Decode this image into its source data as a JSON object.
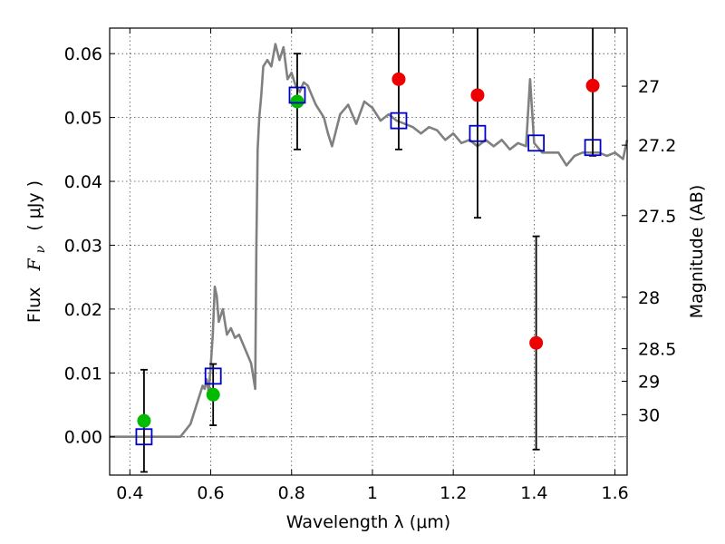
{
  "chart_data": {
    "type": "scatter",
    "xlabel": "Wavelength  λ (μm)",
    "ylabel_text": "Flux",
    "ylabel_sym": "F",
    "ylabel_sub": "ν",
    "ylabel_unit": "( μJy )",
    "y2label": "Magnitude (AB)",
    "xlim": [
      0.35,
      1.63
    ],
    "ylim": [
      -0.006,
      0.064
    ],
    "grid": true,
    "x_ticks": [
      {
        "value": 0.4,
        "label": "0.4"
      },
      {
        "value": 0.6,
        "label": "0.6"
      },
      {
        "value": 0.8,
        "label": "0.8"
      },
      {
        "value": 1.0,
        "label": "1"
      },
      {
        "value": 1.2,
        "label": "1.2"
      },
      {
        "value": 1.4,
        "label": "1.4"
      },
      {
        "value": 1.6,
        "label": "1.6"
      }
    ],
    "y_ticks": [
      {
        "value": 0.0,
        "label": "0.00"
      },
      {
        "value": 0.01,
        "label": "0.01"
      },
      {
        "value": 0.02,
        "label": "0.02"
      },
      {
        "value": 0.03,
        "label": "0.03"
      },
      {
        "value": 0.04,
        "label": "0.04"
      },
      {
        "value": 0.05,
        "label": "0.05"
      },
      {
        "value": 0.06,
        "label": "0.06"
      }
    ],
    "y2_ticks": [
      {
        "mag": 27,
        "label": "27"
      },
      {
        "mag": 27.2,
        "label": "27.2"
      },
      {
        "mag": 27.5,
        "label": "27.5"
      },
      {
        "mag": 28,
        "label": "28"
      },
      {
        "mag": 28.5,
        "label": "28.5"
      },
      {
        "mag": 29,
        "label": "29"
      },
      {
        "mag": 30,
        "label": "30"
      }
    ],
    "colors": {
      "model": "#808080",
      "model_points": "#0000cc",
      "green_points": "#00bb00",
      "red_points": "#ee0000",
      "errorbar": "#000000",
      "grid": "#000000",
      "zero_line": "#555555"
    },
    "model_spectrum": {
      "x": [
        0.35,
        0.4,
        0.45,
        0.5,
        0.525,
        0.55,
        0.565,
        0.58,
        0.585,
        0.59,
        0.595,
        0.6,
        0.605,
        0.61,
        0.615,
        0.62,
        0.63,
        0.64,
        0.65,
        0.66,
        0.67,
        0.68,
        0.69,
        0.7,
        0.705,
        0.71,
        0.713,
        0.716,
        0.72,
        0.725,
        0.73,
        0.74,
        0.75,
        0.76,
        0.77,
        0.78,
        0.79,
        0.8,
        0.81,
        0.82,
        0.83,
        0.84,
        0.85,
        0.86,
        0.87,
        0.88,
        0.89,
        0.9,
        0.92,
        0.94,
        0.96,
        0.98,
        1.0,
        1.02,
        1.04,
        1.06,
        1.08,
        1.1,
        1.12,
        1.14,
        1.16,
        1.18,
        1.2,
        1.22,
        1.24,
        1.26,
        1.28,
        1.3,
        1.32,
        1.34,
        1.36,
        1.38,
        1.39,
        1.4,
        1.42,
        1.44,
        1.46,
        1.48,
        1.5,
        1.52,
        1.54,
        1.56,
        1.58,
        1.6,
        1.62,
        1.63
      ],
      "y": [
        0,
        0,
        0,
        0,
        0,
        0.002,
        0.005,
        0.008,
        0.0075,
        0.009,
        0.007,
        0.011,
        0.016,
        0.0235,
        0.022,
        0.018,
        0.02,
        0.016,
        0.017,
        0.0155,
        0.016,
        0.0145,
        0.013,
        0.0115,
        0.0095,
        0.0075,
        0.03,
        0.045,
        0.05,
        0.0535,
        0.058,
        0.059,
        0.058,
        0.0615,
        0.059,
        0.061,
        0.056,
        0.057,
        0.055,
        0.054,
        0.0555,
        0.055,
        0.0535,
        0.052,
        0.051,
        0.05,
        0.0475,
        0.0455,
        0.0505,
        0.052,
        0.049,
        0.0525,
        0.0515,
        0.0495,
        0.0505,
        0.0495,
        0.049,
        0.0485,
        0.0475,
        0.0485,
        0.048,
        0.0465,
        0.0475,
        0.046,
        0.0465,
        0.0455,
        0.0465,
        0.0455,
        0.0465,
        0.045,
        0.046,
        0.0455,
        0.056,
        0.046,
        0.0445,
        0.0445,
        0.0445,
        0.0425,
        0.044,
        0.0445,
        0.0445,
        0.0445,
        0.044,
        0.0445,
        0.0435,
        0.0465
      ]
    },
    "model_points": [
      {
        "x": 0.435,
        "y": 0.0
      },
      {
        "x": 0.606,
        "y": 0.0095
      },
      {
        "x": 0.814,
        "y": 0.0535
      },
      {
        "x": 1.065,
        "y": 0.0495
      },
      {
        "x": 1.26,
        "y": 0.0475
      },
      {
        "x": 1.405,
        "y": 0.046
      },
      {
        "x": 1.545,
        "y": 0.0453
      }
    ],
    "observed": [
      {
        "x": 0.435,
        "y": 0.0025,
        "err": 0.008,
        "color": "green"
      },
      {
        "x": 0.606,
        "y": 0.0066,
        "err": 0.0048,
        "color": "green"
      },
      {
        "x": 0.814,
        "y": 0.0525,
        "err": 0.0075,
        "color": "green"
      },
      {
        "x": 1.065,
        "y": 0.056,
        "err": 0.011,
        "color": "red"
      },
      {
        "x": 1.26,
        "y": 0.0535,
        "err": 0.0192,
        "color": "red"
      },
      {
        "x": 1.405,
        "y": 0.0147,
        "err": 0.0167,
        "color": "red"
      },
      {
        "x": 1.545,
        "y": 0.055,
        "err": 0.011,
        "color": "red"
      }
    ]
  }
}
